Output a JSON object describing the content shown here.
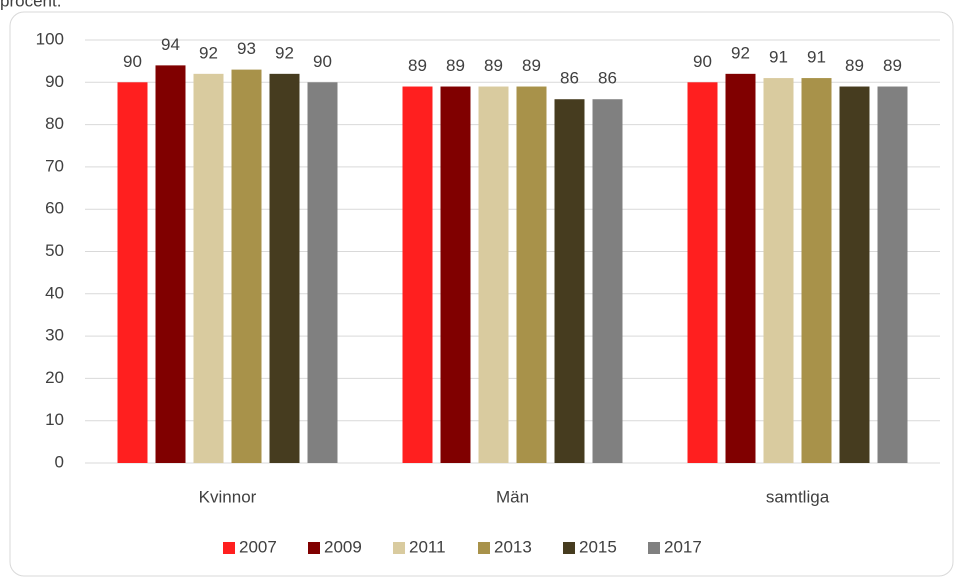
{
  "chart_data": {
    "type": "bar",
    "caption": "procent.",
    "categories": [
      "Kvinnor",
      "Män",
      "samtliga"
    ],
    "series": [
      {
        "name": "2007",
        "color": "#ff1f1f",
        "values": [
          90,
          89,
          90
        ]
      },
      {
        "name": "2009",
        "color": "#800000",
        "values": [
          94,
          89,
          92
        ]
      },
      {
        "name": "2011",
        "color": "#d9cb9f",
        "values": [
          92,
          89,
          91
        ]
      },
      {
        "name": "2013",
        "color": "#a8924a",
        "values": [
          93,
          89,
          91
        ]
      },
      {
        "name": "2015",
        "color": "#463c1f",
        "values": [
          92,
          86,
          89
        ]
      },
      {
        "name": "2017",
        "color": "#808080",
        "values": [
          90,
          86,
          89
        ]
      }
    ],
    "ylim": [
      0,
      100
    ],
    "yticks": [
      0,
      10,
      20,
      30,
      40,
      50,
      60,
      70,
      80,
      90,
      100
    ],
    "grid": true,
    "legend": "bottom"
  }
}
